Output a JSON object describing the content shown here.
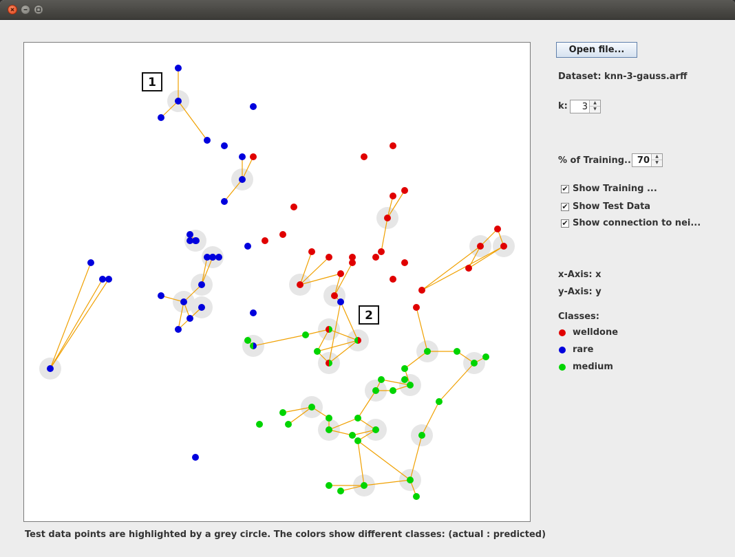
{
  "window": {
    "buttons": [
      "close",
      "minimize",
      "maximize"
    ]
  },
  "controls": {
    "open_file_label": "Open file...",
    "dataset_label": "Dataset: knn-3-gauss.arff",
    "k_label": "k:",
    "k_value": "3",
    "training_label": "% of Training...",
    "training_value": "70",
    "show_training_label": "Show Training ...",
    "show_training_checked": true,
    "show_test_label": "Show Test Data",
    "show_test_checked": true,
    "show_connection_label": "Show connection to nei...",
    "show_connection_checked": true,
    "x_axis_label": "x-Axis: x",
    "y_axis_label": "y-Axis: y",
    "classes_label": "Classes:"
  },
  "classes": [
    {
      "name": "welldone",
      "color": "#e00000"
    },
    {
      "name": "rare",
      "color": "#0000dd"
    },
    {
      "name": "medium",
      "color": "#00d400"
    }
  ],
  "annotations": [
    {
      "label": "1",
      "x": 220,
      "y": 118
    },
    {
      "label": "2",
      "x": 535,
      "y": 457
    }
  ],
  "caption": "Test data points are highlighted by a grey circle. The colors show different classes: (actual : predicted)",
  "chart_data": {
    "type": "scatter",
    "x_range": [
      34,
      771
    ],
    "y_range": [
      61,
      759
    ],
    "classes": [
      "welldone",
      "rare",
      "medium"
    ],
    "training_points": [
      {
        "x": 258,
        "y": 98,
        "c": "rare"
      },
      {
        "x": 233,
        "y": 170,
        "c": "rare"
      },
      {
        "x": 300,
        "y": 203,
        "c": "rare"
      },
      {
        "x": 325,
        "y": 211,
        "c": "rare"
      },
      {
        "x": 367,
        "y": 154,
        "c": "rare"
      },
      {
        "x": 351,
        "y": 227,
        "c": "rare"
      },
      {
        "x": 325,
        "y": 292,
        "c": "rare"
      },
      {
        "x": 275,
        "y": 340,
        "c": "rare"
      },
      {
        "x": 275,
        "y": 349,
        "c": "rare"
      },
      {
        "x": 284,
        "y": 349,
        "c": "rare"
      },
      {
        "x": 300,
        "y": 373,
        "c": "rare"
      },
      {
        "x": 308,
        "y": 373,
        "c": "rare"
      },
      {
        "x": 317,
        "y": 373,
        "c": "rare"
      },
      {
        "x": 359,
        "y": 357,
        "c": "rare"
      },
      {
        "x": 131,
        "y": 381,
        "c": "rare"
      },
      {
        "x": 148,
        "y": 405,
        "c": "rare"
      },
      {
        "x": 157,
        "y": 405,
        "c": "rare"
      },
      {
        "x": 233,
        "y": 429,
        "c": "rare"
      },
      {
        "x": 275,
        "y": 462,
        "c": "rare"
      },
      {
        "x": 258,
        "y": 478,
        "c": "rare"
      },
      {
        "x": 367,
        "y": 454,
        "c": "rare"
      },
      {
        "x": 494,
        "y": 438,
        "c": "rare"
      },
      {
        "x": 283,
        "y": 664,
        "c": "rare"
      },
      {
        "x": 367,
        "y": 227,
        "c": "welldone"
      },
      {
        "x": 528,
        "y": 227,
        "c": "welldone"
      },
      {
        "x": 570,
        "y": 211,
        "c": "welldone"
      },
      {
        "x": 426,
        "y": 300,
        "c": "welldone"
      },
      {
        "x": 384,
        "y": 349,
        "c": "welldone"
      },
      {
        "x": 410,
        "y": 340,
        "c": "welldone"
      },
      {
        "x": 570,
        "y": 284,
        "c": "welldone"
      },
      {
        "x": 587,
        "y": 276,
        "c": "welldone"
      },
      {
        "x": 452,
        "y": 365,
        "c": "welldone"
      },
      {
        "x": 477,
        "y": 373,
        "c": "welldone"
      },
      {
        "x": 511,
        "y": 373,
        "c": "welldone"
      },
      {
        "x": 511,
        "y": 381,
        "c": "welldone"
      },
      {
        "x": 545,
        "y": 373,
        "c": "welldone"
      },
      {
        "x": 553,
        "y": 365,
        "c": "welldone"
      },
      {
        "x": 587,
        "y": 381,
        "c": "welldone"
      },
      {
        "x": 494,
        "y": 397,
        "c": "welldone"
      },
      {
        "x": 570,
        "y": 405,
        "c": "welldone"
      },
      {
        "x": 722,
        "y": 332,
        "c": "welldone"
      },
      {
        "x": 680,
        "y": 389,
        "c": "welldone"
      },
      {
        "x": 612,
        "y": 421,
        "c": "welldone"
      },
      {
        "x": 604,
        "y": 446,
        "c": "welldone"
      },
      {
        "x": 359,
        "y": 494,
        "c": "medium"
      },
      {
        "x": 443,
        "y": 486,
        "c": "medium"
      },
      {
        "x": 460,
        "y": 510,
        "c": "medium"
      },
      {
        "x": 663,
        "y": 510,
        "c": "medium"
      },
      {
        "x": 705,
        "y": 518,
        "c": "medium"
      },
      {
        "x": 587,
        "y": 535,
        "c": "medium"
      },
      {
        "x": 553,
        "y": 551,
        "c": "medium"
      },
      {
        "x": 570,
        "y": 567,
        "c": "medium"
      },
      {
        "x": 587,
        "y": 551,
        "c": "medium"
      },
      {
        "x": 637,
        "y": 583,
        "c": "medium"
      },
      {
        "x": 410,
        "y": 599,
        "c": "medium"
      },
      {
        "x": 418,
        "y": 616,
        "c": "medium"
      },
      {
        "x": 376,
        "y": 616,
        "c": "medium"
      },
      {
        "x": 477,
        "y": 607,
        "c": "medium"
      },
      {
        "x": 519,
        "y": 607,
        "c": "medium"
      },
      {
        "x": 511,
        "y": 632,
        "c": "medium"
      },
      {
        "x": 519,
        "y": 640,
        "c": "medium"
      },
      {
        "x": 477,
        "y": 705,
        "c": "medium"
      },
      {
        "x": 494,
        "y": 713,
        "c": "medium"
      },
      {
        "x": 604,
        "y": 721,
        "c": "medium"
      }
    ],
    "test_points": [
      {
        "x": 258,
        "y": 146,
        "actual": "rare",
        "predicted": "rare"
      },
      {
        "x": 351,
        "y": 260,
        "actual": "rare",
        "predicted": "rare"
      },
      {
        "x": 283,
        "y": 349,
        "actual": "rare",
        "predicted": "rare"
      },
      {
        "x": 308,
        "y": 373,
        "actual": "rare",
        "predicted": "rare"
      },
      {
        "x": 292,
        "y": 413,
        "actual": "rare",
        "predicted": "rare"
      },
      {
        "x": 266,
        "y": 438,
        "actual": "rare",
        "predicted": "rare"
      },
      {
        "x": 292,
        "y": 446,
        "actual": "rare",
        "predicted": "rare"
      },
      {
        "x": 72,
        "y": 535,
        "actual": "rare",
        "predicted": "rare"
      },
      {
        "x": 562,
        "y": 316,
        "actual": "welldone",
        "predicted": "welldone"
      },
      {
        "x": 435,
        "y": 413,
        "actual": "welldone",
        "predicted": "welldone"
      },
      {
        "x": 485,
        "y": 429,
        "actual": "welldone",
        "predicted": "welldone"
      },
      {
        "x": 697,
        "y": 357,
        "actual": "welldone",
        "predicted": "welldone"
      },
      {
        "x": 731,
        "y": 357,
        "actual": "welldone",
        "predicted": "welldone"
      },
      {
        "x": 367,
        "y": 502,
        "actual": "medium",
        "predicted": "rare"
      },
      {
        "x": 477,
        "y": 478,
        "actual": "welldone",
        "predicted": "medium"
      },
      {
        "x": 519,
        "y": 494,
        "actual": "medium",
        "predicted": "welldone"
      },
      {
        "x": 477,
        "y": 527,
        "actual": "welldone",
        "predicted": "medium"
      },
      {
        "x": 620,
        "y": 510,
        "actual": "medium",
        "predicted": "medium"
      },
      {
        "x": 688,
        "y": 527,
        "actual": "medium",
        "predicted": "medium"
      },
      {
        "x": 595,
        "y": 559,
        "actual": "medium",
        "predicted": "medium"
      },
      {
        "x": 545,
        "y": 567,
        "actual": "medium",
        "predicted": "medium"
      },
      {
        "x": 452,
        "y": 591,
        "actual": "medium",
        "predicted": "medium"
      },
      {
        "x": 477,
        "y": 624,
        "actual": "medium",
        "predicted": "medium"
      },
      {
        "x": 545,
        "y": 624,
        "actual": "medium",
        "predicted": "medium"
      },
      {
        "x": 612,
        "y": 632,
        "actual": "medium",
        "predicted": "medium"
      },
      {
        "x": 595,
        "y": 697,
        "actual": "medium",
        "predicted": "medium"
      },
      {
        "x": 528,
        "y": 705,
        "actual": "medium",
        "predicted": "medium"
      }
    ],
    "connections": [
      [
        258,
        146,
        258,
        98
      ],
      [
        258,
        146,
        233,
        170
      ],
      [
        258,
        146,
        300,
        203
      ],
      [
        351,
        260,
        351,
        227
      ],
      [
        351,
        260,
        367,
        227
      ],
      [
        351,
        260,
        325,
        292
      ],
      [
        283,
        349,
        275,
        340
      ],
      [
        283,
        349,
        275,
        349
      ],
      [
        283,
        349,
        284,
        349
      ],
      [
        308,
        373,
        300,
        373
      ],
      [
        308,
        373,
        317,
        373
      ],
      [
        308,
        373,
        292,
        413
      ],
      [
        292,
        413,
        300,
        373
      ],
      [
        292,
        413,
        266,
        438
      ],
      [
        266,
        438,
        233,
        429
      ],
      [
        266,
        438,
        258,
        478
      ],
      [
        266,
        438,
        275,
        462
      ],
      [
        292,
        446,
        275,
        462
      ],
      [
        292,
        446,
        258,
        478
      ],
      [
        72,
        535,
        131,
        381
      ],
      [
        72,
        535,
        148,
        405
      ],
      [
        72,
        535,
        157,
        405
      ],
      [
        562,
        316,
        570,
        284
      ],
      [
        562,
        316,
        587,
        276
      ],
      [
        562,
        316,
        553,
        365
      ],
      [
        435,
        413,
        452,
        365
      ],
      [
        435,
        413,
        477,
        373
      ],
      [
        435,
        413,
        494,
        397
      ],
      [
        485,
        429,
        494,
        397
      ],
      [
        485,
        429,
        511,
        381
      ],
      [
        485,
        429,
        494,
        438
      ],
      [
        697,
        357,
        722,
        332
      ],
      [
        697,
        357,
        680,
        389
      ],
      [
        731,
        357,
        722,
        332
      ],
      [
        731,
        357,
        680,
        389
      ],
      [
        731,
        357,
        612,
        421
      ],
      [
        697,
        357,
        612,
        421
      ],
      [
        367,
        502,
        443,
        486
      ],
      [
        367,
        502,
        359,
        494
      ],
      [
        477,
        478,
        460,
        510
      ],
      [
        477,
        478,
        443,
        486
      ],
      [
        477,
        478,
        519,
        494
      ],
      [
        519,
        494,
        494,
        438
      ],
      [
        519,
        494,
        477,
        527
      ],
      [
        519,
        494,
        460,
        510
      ],
      [
        477,
        527,
        460,
        510
      ],
      [
        477,
        527,
        494,
        438
      ],
      [
        620,
        510,
        604,
        446
      ],
      [
        620,
        510,
        587,
        535
      ],
      [
        620,
        510,
        663,
        510
      ],
      [
        688,
        527,
        663,
        510
      ],
      [
        688,
        527,
        705,
        518
      ],
      [
        688,
        527,
        637,
        583
      ],
      [
        595,
        559,
        587,
        535
      ],
      [
        595,
        559,
        553,
        551
      ],
      [
        595,
        559,
        570,
        567
      ],
      [
        545,
        567,
        553,
        551
      ],
      [
        545,
        567,
        570,
        567
      ],
      [
        545,
        567,
        519,
        607
      ],
      [
        452,
        591,
        410,
        599
      ],
      [
        452,
        591,
        418,
        616
      ],
      [
        452,
        591,
        477,
        607
      ],
      [
        477,
        624,
        477,
        607
      ],
      [
        477,
        624,
        511,
        632
      ],
      [
        477,
        624,
        519,
        607
      ],
      [
        545,
        624,
        519,
        607
      ],
      [
        545,
        624,
        511,
        632
      ],
      [
        545,
        624,
        519,
        640
      ],
      [
        612,
        632,
        637,
        583
      ],
      [
        612,
        632,
        595,
        697
      ],
      [
        595,
        697,
        519,
        640
      ],
      [
        595,
        697,
        604,
        721
      ],
      [
        595,
        697,
        528,
        705
      ],
      [
        528,
        705,
        477,
        705
      ],
      [
        528,
        705,
        494,
        713
      ],
      [
        528,
        705,
        519,
        640
      ]
    ]
  }
}
